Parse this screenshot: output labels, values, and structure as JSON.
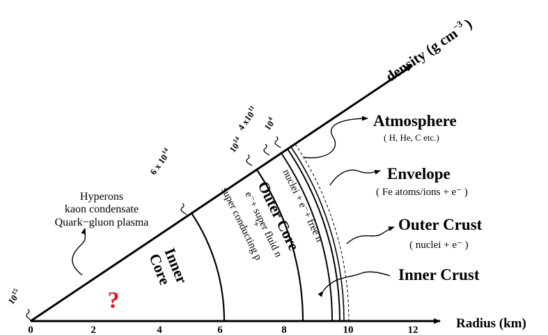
{
  "axes": {
    "density_label_main": "density (g cm",
    "density_label_exp": "−3",
    "density_label_close": ")",
    "radius_label": "Radius (km)"
  },
  "radius_ticks": [
    "0",
    "2",
    "4",
    "6",
    "8",
    "10",
    "12"
  ],
  "density_ticks": {
    "d1e15": {
      "base": "10",
      "exp": "15"
    },
    "d6e14": {
      "base": "6 x 10",
      "exp": "14"
    },
    "d1e14": {
      "base": "10",
      "exp": "14"
    },
    "d4e11": {
      "base": "4 x10",
      "exp": "11"
    },
    "d1e4": {
      "base": "10",
      "exp": "4"
    }
  },
  "layers": {
    "inner_core": {
      "line1": "Inner",
      "line2": "Core"
    },
    "outer_core": {
      "title": "Outer  Core",
      "line1": "e⁻+ super fluid  n",
      "line2": "+",
      "line3": "super conducting  p"
    },
    "inner_crust_band": "nuclei + e⁻+ free n",
    "question_mark": "?"
  },
  "callouts": {
    "exotic": [
      "Hyperons",
      "kaon condensate",
      "Quark−gluon plasma"
    ],
    "atmosphere": {
      "title": "Atmosphere",
      "sub": "( H, He, C  etc.)"
    },
    "envelope": {
      "title": "Envelope",
      "sub": "( Fe atoms/ions + e⁻ )"
    },
    "outer_crust": {
      "title": "Outer Crust",
      "sub": "( nuclei + e⁻ )"
    },
    "inner_crust": {
      "title": "Inner Crust"
    }
  }
}
